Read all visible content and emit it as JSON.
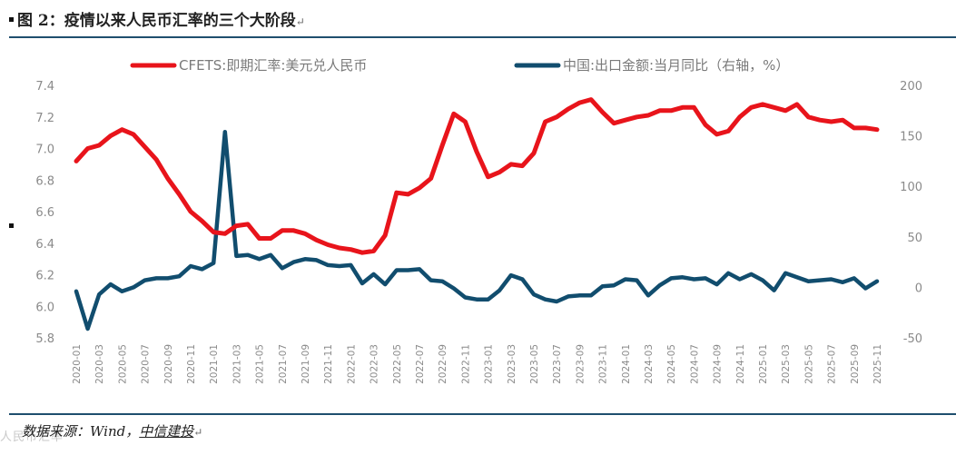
{
  "header": {
    "title": "图 2：疫情以来人民币汇率的三个大阶段",
    "return_mark": "↵"
  },
  "footer": {
    "source_prefix": "数据来源：",
    "source_wind": "Wind",
    "source_sep": "，",
    "source_org": "中信建投",
    "return_mark": "↵",
    "watermark": "人民币汇率"
  },
  "colors": {
    "cny": "#e8141b",
    "export": "#114d6e",
    "rule": "#1f4e6e"
  },
  "chart_data": {
    "type": "line",
    "title": "",
    "x": [
      "2020-01",
      "2020-02",
      "2020-03",
      "2020-04",
      "2020-05",
      "2020-06",
      "2020-07",
      "2020-08",
      "2020-09",
      "2020-10",
      "2020-11",
      "2020-12",
      "2021-01",
      "2021-02",
      "2021-03",
      "2021-04",
      "2021-05",
      "2021-06",
      "2021-07",
      "2021-08",
      "2021-09",
      "2021-10",
      "2021-11",
      "2021-12",
      "2022-01",
      "2022-02",
      "2022-03",
      "2022-04",
      "2022-05",
      "2022-06",
      "2022-07",
      "2022-08",
      "2022-09",
      "2022-10",
      "2022-11",
      "2022-12",
      "2023-01",
      "2023-02",
      "2023-03",
      "2023-04",
      "2023-05",
      "2023-06",
      "2023-07",
      "2023-08",
      "2023-09",
      "2023-10",
      "2023-11",
      "2023-12",
      "2024-01",
      "2024-02",
      "2024-03",
      "2024-04",
      "2024-05",
      "2024-06",
      "2024-07",
      "2024-08",
      "2024-09",
      "2024-10",
      "2024-11",
      "2024-12",
      "2025-01",
      "2025-02",
      "2025-03",
      "2025-04",
      "2025-05",
      "2025-06",
      "2025-07",
      "2025-08",
      "2025-09",
      "2025-10",
      "2025-11"
    ],
    "x_tick_labels": [
      "2020-01",
      "2020-03",
      "2020-05",
      "2020-07",
      "2020-09",
      "2020-11",
      "2021-01",
      "2021-03",
      "2021-05",
      "2021-07",
      "2021-09",
      "2021-11",
      "2022-01",
      "2022-03",
      "2022-05",
      "2022-07",
      "2022-09",
      "2022-11",
      "2023-01",
      "2023-03",
      "2023-05",
      "2023-07",
      "2023-09",
      "2023-11",
      "2024-01",
      "2024-03",
      "2024-05",
      "2024-07",
      "2024-09",
      "2024-11",
      "2025-01",
      "2025-03",
      "2025-05",
      "2025-07",
      "2025-09",
      "2025-11"
    ],
    "left_axis": {
      "ylim": [
        5.8,
        7.4
      ],
      "ticks": [
        "7.4",
        "7.2",
        "7.0",
        "6.8",
        "6.6",
        "6.4",
        "6.2",
        "6.0",
        "5.8"
      ]
    },
    "right_axis": {
      "ylim": [
        -50,
        200
      ],
      "ticks": [
        "200",
        "150",
        "100",
        "50",
        "0",
        "-50"
      ]
    },
    "series": [
      {
        "name": "CFETS:即期汇率:美元兑人民币",
        "axis": "left",
        "color": "#e8141b",
        "values": [
          6.92,
          7.0,
          7.02,
          7.08,
          7.12,
          7.09,
          7.01,
          6.93,
          6.81,
          6.71,
          6.6,
          6.54,
          6.47,
          6.46,
          6.51,
          6.52,
          6.43,
          6.43,
          6.48,
          6.48,
          6.46,
          6.42,
          6.39,
          6.37,
          6.36,
          6.34,
          6.35,
          6.45,
          6.72,
          6.71,
          6.75,
          6.81,
          7.02,
          7.22,
          7.17,
          6.98,
          6.82,
          6.85,
          6.9,
          6.89,
          6.97,
          7.17,
          7.2,
          7.25,
          7.29,
          7.31,
          7.23,
          7.16,
          7.18,
          7.2,
          7.21,
          7.24,
          7.24,
          7.26,
          7.26,
          7.15,
          7.09,
          7.11,
          7.2,
          7.26,
          7.28,
          7.26,
          7.24,
          7.28,
          7.2,
          7.18,
          7.17,
          7.18,
          7.13,
          7.13,
          7.12
        ]
      },
      {
        "name": "中国:出口金额:当月同比（右轴，%）",
        "axis": "right",
        "color": "#114d6e",
        "values": [
          -4,
          -41,
          -7,
          3,
          -4,
          0,
          7,
          9,
          9,
          11,
          21,
          18,
          24,
          154,
          31,
          32,
          28,
          32,
          19,
          25,
          28,
          27,
          22,
          21,
          22,
          4,
          13,
          3,
          17,
          17,
          18,
          7,
          6,
          -1,
          -10,
          -12,
          -12,
          -3,
          12,
          8,
          -7,
          -12,
          -14,
          -9,
          -8,
          -8,
          1,
          2,
          8,
          7,
          -8,
          2,
          9,
          10,
          8,
          9,
          3,
          14,
          8,
          13,
          7,
          -3,
          14,
          10,
          6,
          7,
          8,
          5,
          9,
          -1,
          6
        ]
      }
    ]
  }
}
